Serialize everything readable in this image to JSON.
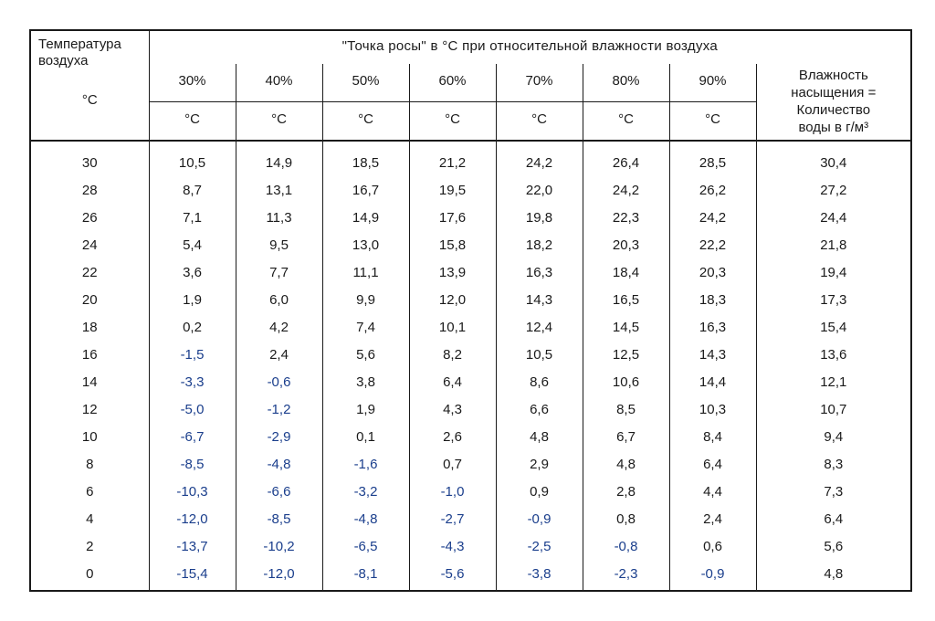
{
  "table": {
    "type": "table",
    "border_color": "#1a1a1a",
    "background_color": "#ffffff",
    "text_color": "#1a1a1a",
    "negative_color": "#1a3e8c",
    "font_family": "Arial",
    "font_size_pt": 11,
    "header": {
      "left_label_line1": "Температура",
      "left_label_line2": "воздуха",
      "left_unit": "°C",
      "title": "\"Точка росы\" в °C при относительной  влажности воздуха",
      "percent_labels": [
        "30%",
        "40%",
        "50%",
        "60%",
        "70%",
        "80%",
        "90%"
      ],
      "unit_row": [
        "°C",
        "°C",
        "°C",
        "°C",
        "°C",
        "°C",
        "°C"
      ],
      "right_label_line1": "Влажность",
      "right_label_line2": "насыщения =",
      "right_label_line3": "Количество",
      "right_label_line4": "воды в г/м³"
    },
    "rows": [
      [
        "30",
        "10,5",
        "14,9",
        "18,5",
        "21,2",
        "24,2",
        "26,4",
        "28,5",
        "30,4"
      ],
      [
        "28",
        "8,7",
        "13,1",
        "16,7",
        "19,5",
        "22,0",
        "24,2",
        "26,2",
        "27,2"
      ],
      [
        "26",
        "7,1",
        "11,3",
        "14,9",
        "17,6",
        "19,8",
        "22,3",
        "24,2",
        "24,4"
      ],
      [
        "24",
        "5,4",
        "9,5",
        "13,0",
        "15,8",
        "18,2",
        "20,3",
        "22,2",
        "21,8"
      ],
      [
        "22",
        "3,6",
        "7,7",
        "11,1",
        "13,9",
        "16,3",
        "18,4",
        "20,3",
        "19,4"
      ],
      [
        "20",
        "1,9",
        "6,0",
        "9,9",
        "12,0",
        "14,3",
        "16,5",
        "18,3",
        "17,3"
      ],
      [
        "18",
        "0,2",
        "4,2",
        "7,4",
        "10,1",
        "12,4",
        "14,5",
        "16,3",
        "15,4"
      ],
      [
        "16",
        "-1,5",
        "2,4",
        "5,6",
        "8,2",
        "10,5",
        "12,5",
        "14,3",
        "13,6"
      ],
      [
        "14",
        "-3,3",
        "-0,6",
        "3,8",
        "6,4",
        "8,6",
        "10,6",
        "14,4",
        "12,1"
      ],
      [
        "12",
        "-5,0",
        "-1,2",
        "1,9",
        "4,3",
        "6,6",
        "8,5",
        "10,3",
        "10,7"
      ],
      [
        "10",
        "-6,7",
        "-2,9",
        "0,1",
        "2,6",
        "4,8",
        "6,7",
        "8,4",
        "9,4"
      ],
      [
        "8",
        "-8,5",
        "-4,8",
        "-1,6",
        "0,7",
        "2,9",
        "4,8",
        "6,4",
        "8,3"
      ],
      [
        "6",
        "-10,3",
        "-6,6",
        "-3,2",
        "-1,0",
        "0,9",
        "2,8",
        "4,4",
        "7,3"
      ],
      [
        "4",
        "-12,0",
        "-8,5",
        "-4,8",
        "-2,7",
        "-0,9",
        "0,8",
        "2,4",
        "6,4"
      ],
      [
        "2",
        "-13,7",
        "-10,2",
        "-6,5",
        "-4,3",
        "-2,5",
        "-0,8",
        "0,6",
        "5,6"
      ],
      [
        "0",
        "-15,4",
        "-12,0",
        "-8,1",
        "-5,6",
        "-3,8",
        "-2,3",
        "-0,9",
        "4,8"
      ]
    ]
  }
}
